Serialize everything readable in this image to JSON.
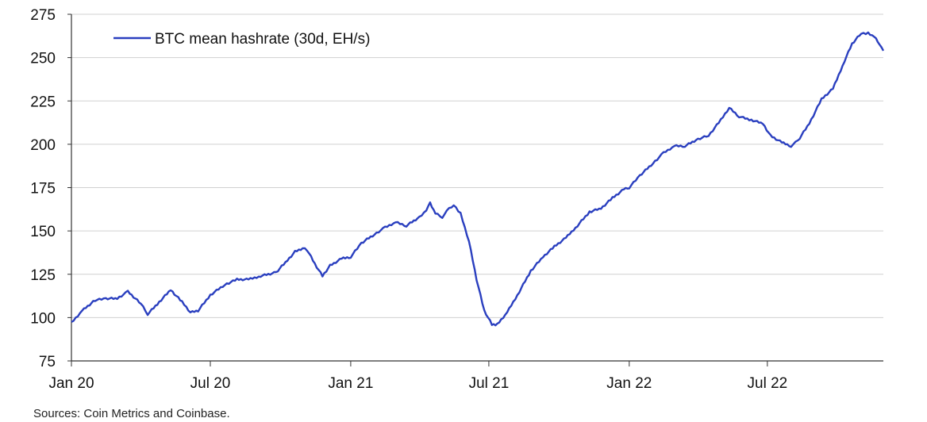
{
  "chart_data": {
    "type": "line",
    "ylim": [
      75,
      275
    ],
    "yticks": [
      75,
      100,
      125,
      150,
      175,
      200,
      225,
      250,
      275
    ],
    "xlim": [
      "2020-01-01",
      "2022-11-30"
    ],
    "xticks": [
      {
        "label": "Jan 20",
        "date": "2020-01-01"
      },
      {
        "label": "Jul 20",
        "date": "2020-07-01"
      },
      {
        "label": "Jan 21",
        "date": "2021-01-01"
      },
      {
        "label": "Jul 21",
        "date": "2021-07-01"
      },
      {
        "label": "Jan 22",
        "date": "2022-01-01"
      },
      {
        "label": "Jul 22",
        "date": "2022-07-01"
      }
    ],
    "grid": "horizontal",
    "legend_position": "top-left",
    "series": [
      {
        "name": "BTC mean hashrate (30d, EH/s)",
        "color": "#2a3fbf",
        "points": [
          [
            "2020-01-01",
            97
          ],
          [
            "2020-01-15",
            104
          ],
          [
            "2020-02-01",
            110
          ],
          [
            "2020-02-15",
            111
          ],
          [
            "2020-03-01",
            111
          ],
          [
            "2020-03-15",
            115
          ],
          [
            "2020-04-01",
            108
          ],
          [
            "2020-04-10",
            102
          ],
          [
            "2020-04-25",
            109
          ],
          [
            "2020-05-10",
            116
          ],
          [
            "2020-05-25",
            109
          ],
          [
            "2020-06-05",
            103
          ],
          [
            "2020-06-15",
            104
          ],
          [
            "2020-07-01",
            113
          ],
          [
            "2020-07-20",
            119
          ],
          [
            "2020-08-05",
            122
          ],
          [
            "2020-08-20",
            122
          ],
          [
            "2020-09-05",
            124
          ],
          [
            "2020-09-25",
            126
          ],
          [
            "2020-10-10",
            133
          ],
          [
            "2020-10-20",
            138
          ],
          [
            "2020-10-30",
            140
          ],
          [
            "2020-11-05",
            139
          ],
          [
            "2020-11-15",
            131
          ],
          [
            "2020-11-25",
            124
          ],
          [
            "2020-12-05",
            130
          ],
          [
            "2020-12-20",
            134
          ],
          [
            "2021-01-01",
            135
          ],
          [
            "2021-01-15",
            143
          ],
          [
            "2021-02-01",
            148
          ],
          [
            "2021-02-15",
            152
          ],
          [
            "2021-03-01",
            155
          ],
          [
            "2021-03-15",
            153
          ],
          [
            "2021-04-01",
            158
          ],
          [
            "2021-04-10",
            162
          ],
          [
            "2021-04-15",
            166
          ],
          [
            "2021-04-22",
            160
          ],
          [
            "2021-05-01",
            158
          ],
          [
            "2021-05-10",
            163
          ],
          [
            "2021-05-16",
            165
          ],
          [
            "2021-05-25",
            160
          ],
          [
            "2021-06-05",
            144
          ],
          [
            "2021-06-15",
            122
          ],
          [
            "2021-06-25",
            104
          ],
          [
            "2021-07-05",
            96
          ],
          [
            "2021-07-12",
            96
          ],
          [
            "2021-07-25",
            103
          ],
          [
            "2021-08-10",
            115
          ],
          [
            "2021-08-25",
            127
          ],
          [
            "2021-09-10",
            135
          ],
          [
            "2021-09-25",
            141
          ],
          [
            "2021-10-10",
            146
          ],
          [
            "2021-10-25",
            153
          ],
          [
            "2021-11-10",
            161
          ],
          [
            "2021-11-25",
            163
          ],
          [
            "2021-12-10",
            169
          ],
          [
            "2021-12-25",
            174
          ],
          [
            "2022-01-01",
            175
          ],
          [
            "2022-01-15",
            182
          ],
          [
            "2022-02-01",
            189
          ],
          [
            "2022-02-15",
            195
          ],
          [
            "2022-03-01",
            199
          ],
          [
            "2022-03-15",
            199
          ],
          [
            "2022-04-01",
            203
          ],
          [
            "2022-04-15",
            205
          ],
          [
            "2022-05-01",
            214
          ],
          [
            "2022-05-12",
            221
          ],
          [
            "2022-05-25",
            216
          ],
          [
            "2022-06-10",
            214
          ],
          [
            "2022-06-25",
            212
          ],
          [
            "2022-07-05",
            205
          ],
          [
            "2022-07-20",
            201
          ],
          [
            "2022-08-01",
            199
          ],
          [
            "2022-08-10",
            202
          ],
          [
            "2022-08-25",
            212
          ],
          [
            "2022-09-10",
            226
          ],
          [
            "2022-09-25",
            232
          ],
          [
            "2022-10-10",
            248
          ],
          [
            "2022-10-20",
            258
          ],
          [
            "2022-11-01",
            264
          ],
          [
            "2022-11-10",
            264
          ],
          [
            "2022-11-18",
            262
          ],
          [
            "2022-11-25",
            258
          ],
          [
            "2022-11-30",
            254
          ]
        ]
      }
    ]
  },
  "footer": {
    "source": "Sources: Coin Metrics and Coinbase."
  }
}
